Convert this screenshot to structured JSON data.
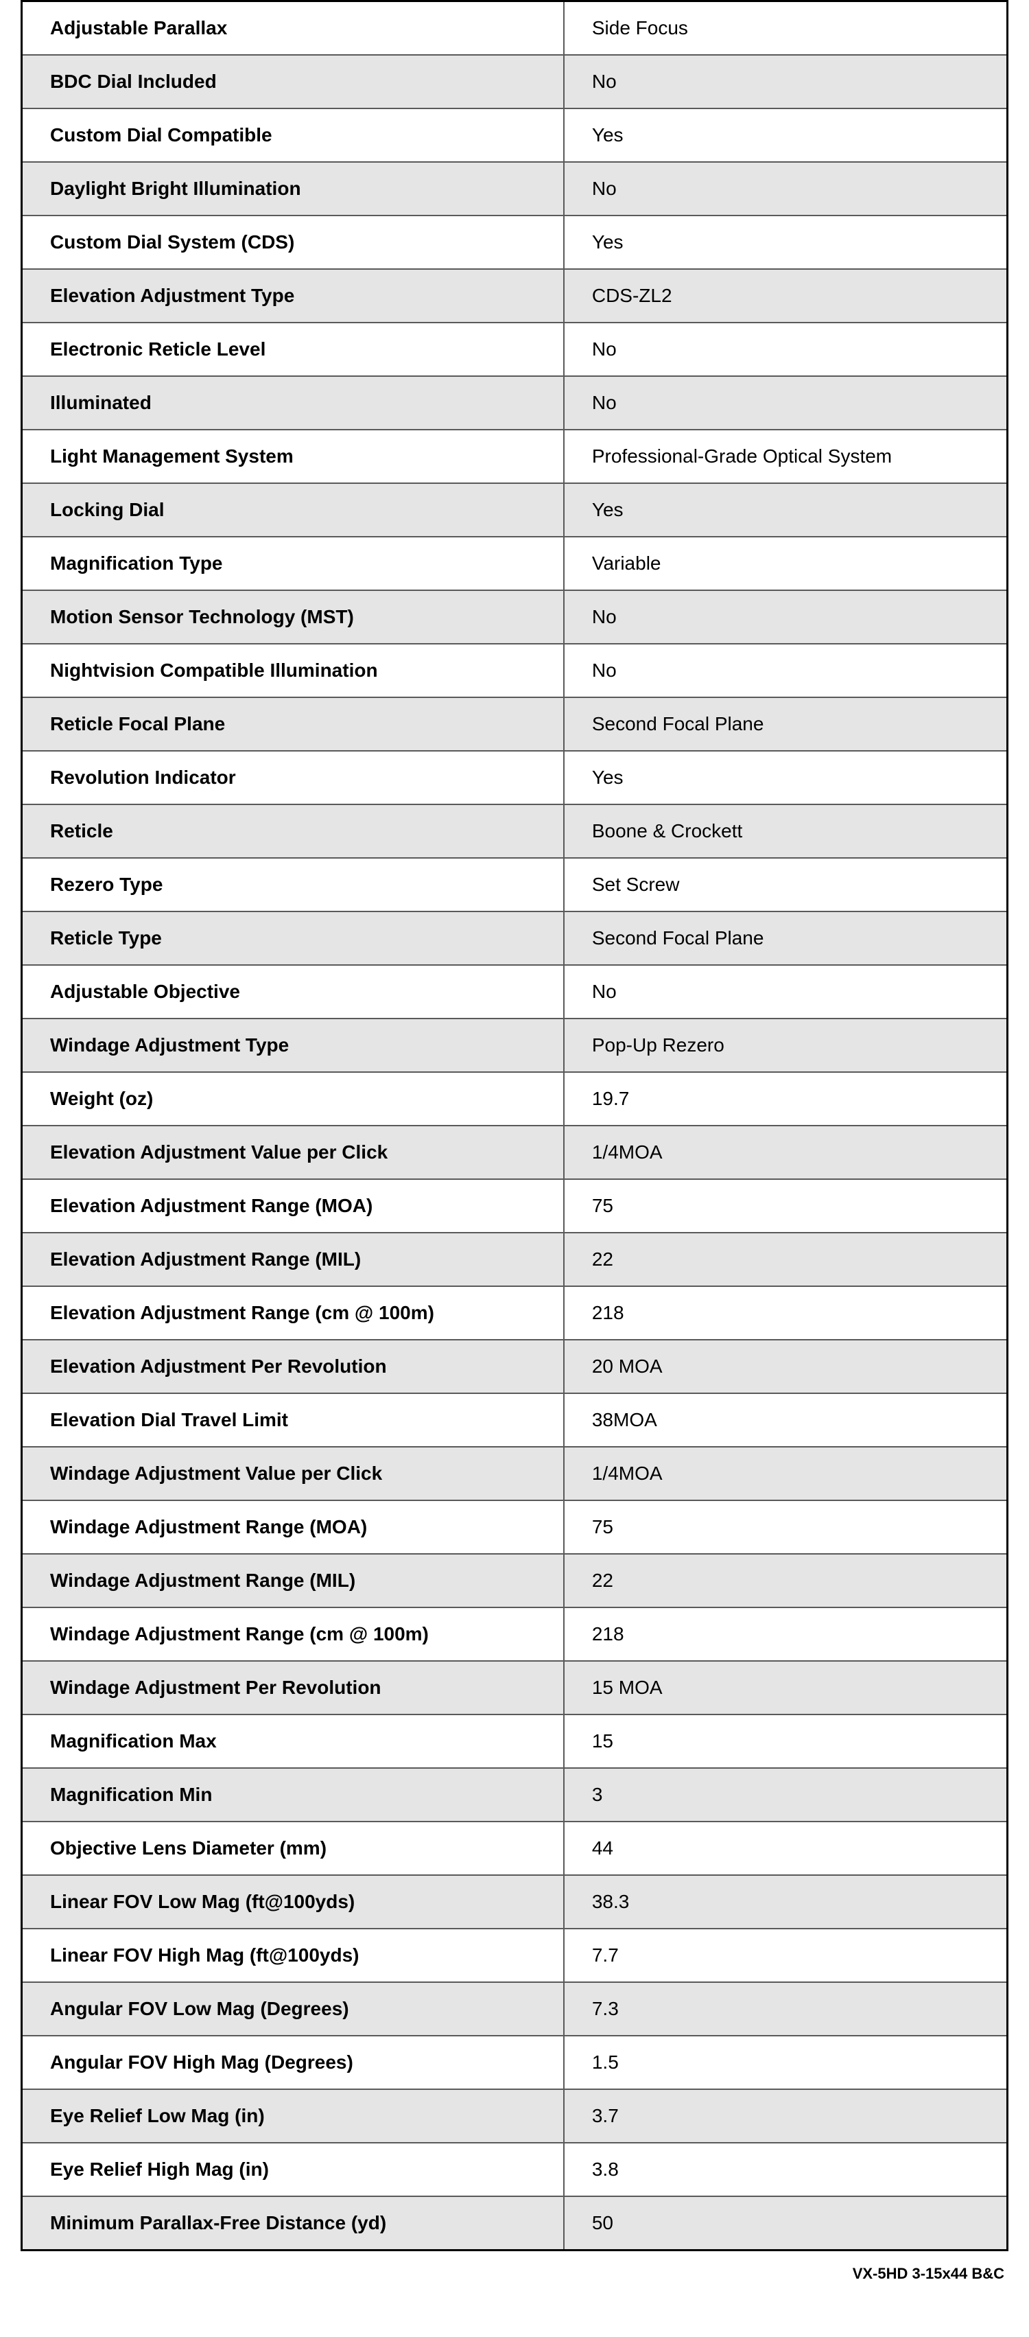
{
  "footer": "VX-5HD 3-15x44 B&C",
  "specs": [
    {
      "label": "Adjustable Parallax",
      "value": "Side Focus"
    },
    {
      "label": "BDC Dial Included",
      "value": "No"
    },
    {
      "label": "Custom Dial Compatible",
      "value": "Yes"
    },
    {
      "label": "Daylight Bright Illumination",
      "value": "No"
    },
    {
      "label": "Custom Dial System (CDS)",
      "value": "Yes"
    },
    {
      "label": "Elevation Adjustment Type",
      "value": "CDS-ZL2"
    },
    {
      "label": "Electronic Reticle Level",
      "value": "No"
    },
    {
      "label": "Illuminated",
      "value": "No"
    },
    {
      "label": "Light Management System",
      "value": "Professional-Grade Optical System"
    },
    {
      "label": "Locking Dial",
      "value": "Yes"
    },
    {
      "label": "Magnification Type",
      "value": "Variable"
    },
    {
      "label": "Motion Sensor Technology (MST)",
      "value": "No"
    },
    {
      "label": "Nightvision Compatible Illumination",
      "value": "No"
    },
    {
      "label": "Reticle Focal Plane",
      "value": "Second Focal Plane"
    },
    {
      "label": "Revolution Indicator",
      "value": "Yes"
    },
    {
      "label": "Reticle",
      "value": "Boone & Crockett"
    },
    {
      "label": "Rezero Type",
      "value": "Set Screw"
    },
    {
      "label": "Reticle Type",
      "value": "Second Focal Plane"
    },
    {
      "label": "Adjustable Objective",
      "value": "No"
    },
    {
      "label": "Windage Adjustment Type",
      "value": "Pop-Up Rezero"
    },
    {
      "label": "Weight (oz)",
      "value": "19.7"
    },
    {
      "label": "Elevation Adjustment Value per Click",
      "value": "1/4MOA"
    },
    {
      "label": "Elevation Adjustment Range (MOA)",
      "value": "75"
    },
    {
      "label": "Elevation Adjustment Range (MIL)",
      "value": "22"
    },
    {
      "label": "Elevation Adjustment Range (cm @ 100m)",
      "value": "218"
    },
    {
      "label": "Elevation Adjustment Per Revolution",
      "value": "20 MOA"
    },
    {
      "label": "Elevation Dial Travel Limit",
      "value": "38MOA"
    },
    {
      "label": "Windage Adjustment Value per Click",
      "value": "1/4MOA"
    },
    {
      "label": "Windage Adjustment Range (MOA)",
      "value": "75"
    },
    {
      "label": "Windage Adjustment Range (MIL)",
      "value": "22"
    },
    {
      "label": "Windage Adjustment Range (cm @ 100m)",
      "value": "218"
    },
    {
      "label": "Windage Adjustment Per Revolution",
      "value": "15 MOA"
    },
    {
      "label": "Magnification Max",
      "value": "15"
    },
    {
      "label": "Magnification Min",
      "value": "3"
    },
    {
      "label": "Objective Lens Diameter (mm)",
      "value": "44"
    },
    {
      "label": "Linear FOV Low Mag (ft@100yds)",
      "value": "38.3"
    },
    {
      "label": "Linear FOV High Mag (ft@100yds)",
      "value": "7.7"
    },
    {
      "label": "Angular FOV Low Mag (Degrees)",
      "value": "7.3"
    },
    {
      "label": "Angular FOV High Mag (Degrees)",
      "value": "1.5"
    },
    {
      "label": "Eye Relief Low Mag (in)",
      "value": "3.7"
    },
    {
      "label": "Eye Relief High Mag (in)",
      "value": "3.8"
    },
    {
      "label": "Minimum Parallax-Free Distance (yd)",
      "value": "50"
    }
  ],
  "style": {
    "row_bg_odd": "#ffffff",
    "row_bg_even": "#e5e5e5",
    "border_outer": "#000000",
    "border_inner": "#5a5a5a",
    "font_size_cell": 28,
    "font_size_footer": 22
  }
}
